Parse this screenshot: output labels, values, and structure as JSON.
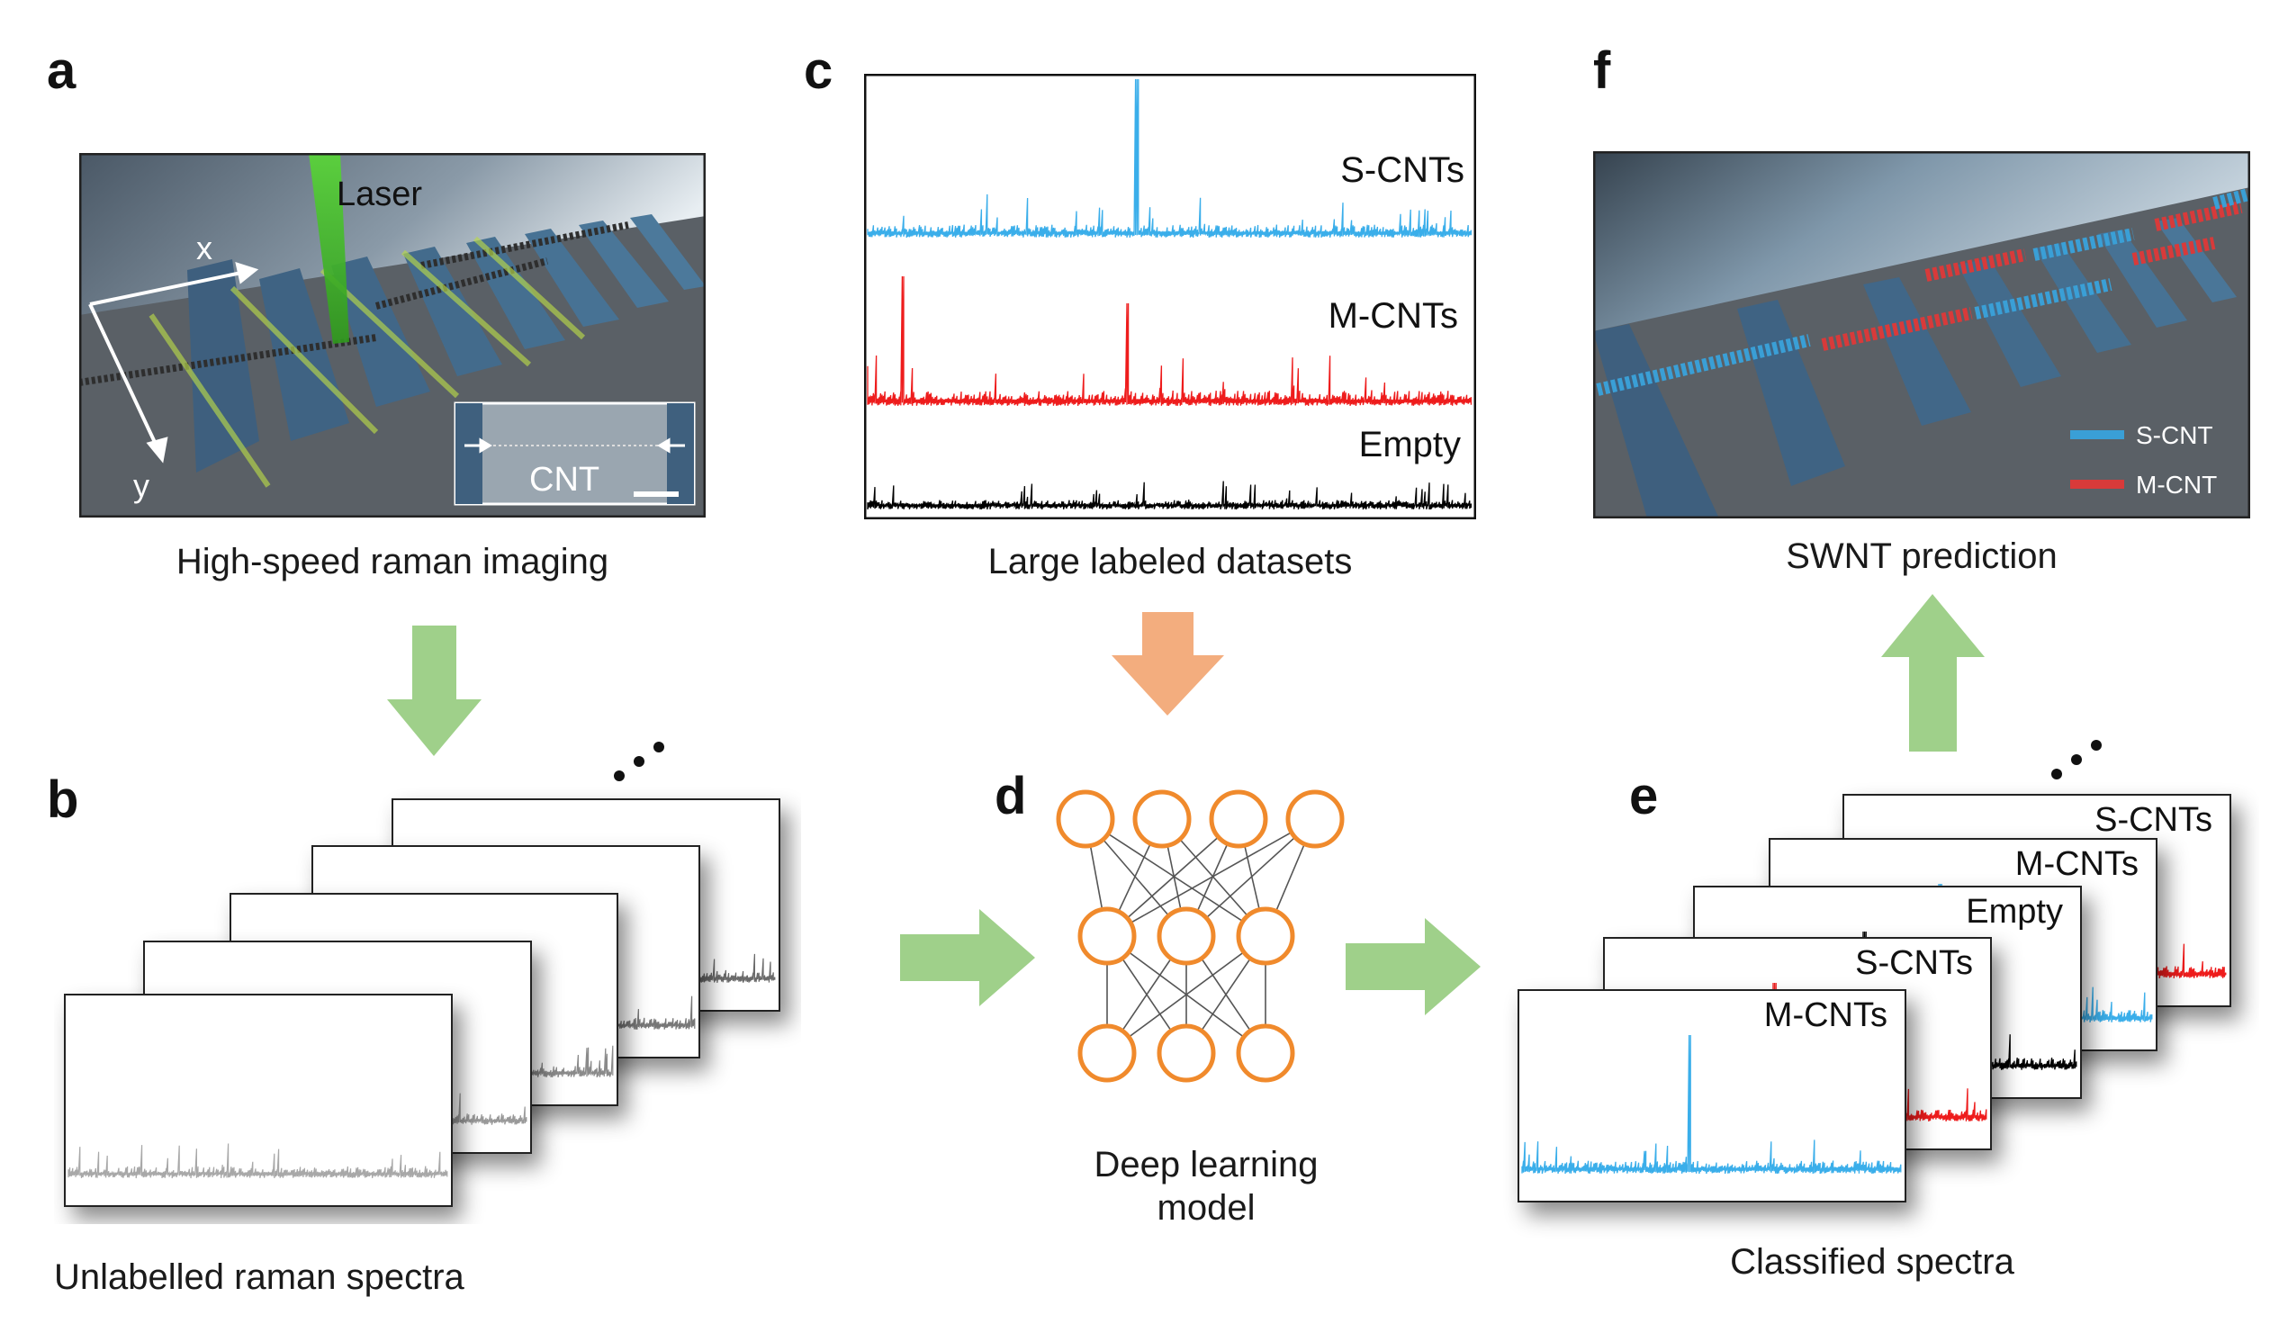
{
  "panels": {
    "a": {
      "letter": "a",
      "caption": "High-speed raman imaging",
      "laser_label": "Laser",
      "axis_x": "x",
      "axis_y": "y",
      "inset_label": "CNT"
    },
    "b": {
      "letter": "b",
      "caption": "Unlabelled raman spectra"
    },
    "c": {
      "letter": "c",
      "caption": "Large labeled datasets",
      "spectra": [
        {
          "label": "S-CNTs",
          "color": "#3aaeea"
        },
        {
          "label": "M-CNTs",
          "color": "#ee1c1c"
        },
        {
          "label": "Empty",
          "color": "#000000"
        }
      ]
    },
    "d": {
      "letter": "d",
      "caption_line1": "Deep learning",
      "caption_line2": "model",
      "node_color": "#f08a2c",
      "layers": [
        4,
        3,
        3
      ]
    },
    "e": {
      "letter": "e",
      "caption": "Classified spectra",
      "cards": [
        {
          "label": "S-CNTs",
          "color": "#ee1c1c"
        },
        {
          "label": "M-CNTs",
          "color": "#3aaeea"
        },
        {
          "label": "Empty",
          "color": "#000000"
        },
        {
          "label": "S-CNTs",
          "color": "#ee1c1c"
        },
        {
          "label": "M-CNTs",
          "color": "#3aaeea"
        }
      ]
    },
    "f": {
      "letter": "f",
      "caption": "SWNT prediction",
      "legend": [
        {
          "label": "S-CNT",
          "color": "#3aa0d0"
        },
        {
          "label": "M-CNT",
          "color": "#d83a3a"
        }
      ]
    }
  },
  "colors": {
    "green_arrow": "#9fd08a",
    "orange_arrow": "#f3ad7e",
    "gray_spectrum": "#9a9a9a"
  }
}
